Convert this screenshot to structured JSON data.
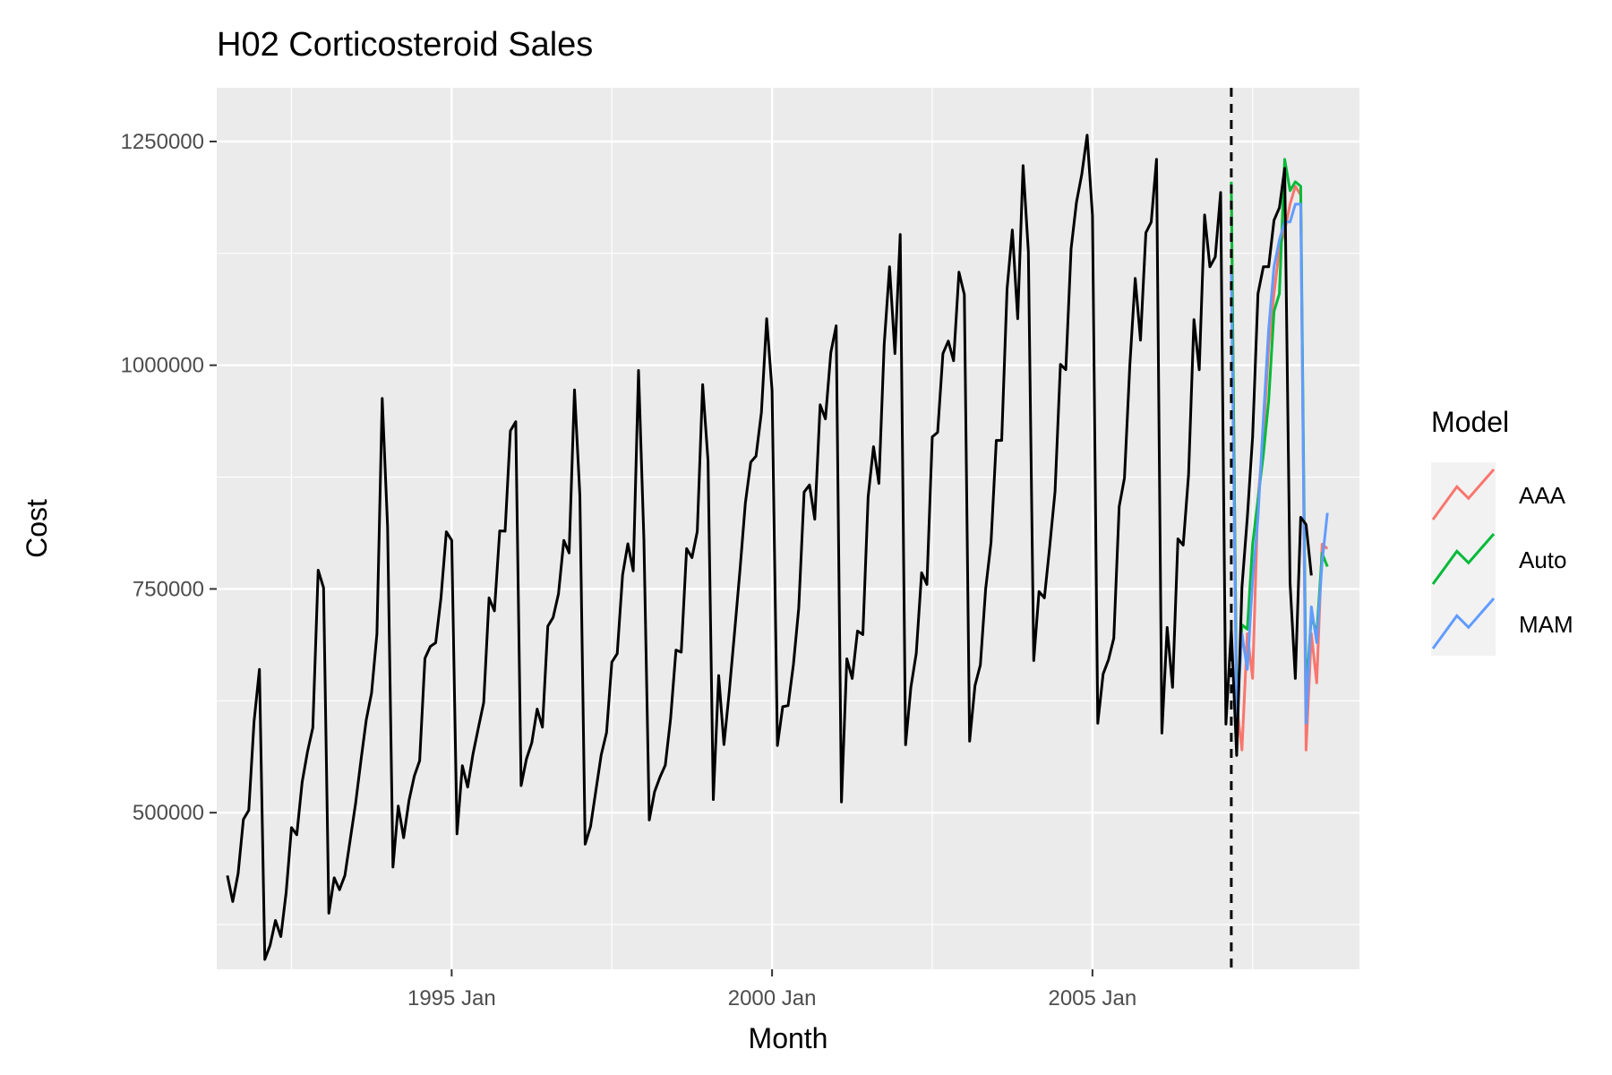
{
  "chart_data": {
    "type": "line",
    "title": "H02 Corticosteroid Sales",
    "xlabel": "Month",
    "ylabel": "Cost",
    "xlim": [
      "1991-05",
      "2009-03"
    ],
    "ylim": [
      325000,
      1310000
    ],
    "x_ticks": [
      {
        "value": "1995-01",
        "label": "1995 Jan"
      },
      {
        "value": "2000-01",
        "label": "2000 Jan"
      },
      {
        "value": "2005-01",
        "label": "2005 Jan"
      }
    ],
    "y_ticks": [
      {
        "value": 500000,
        "label": "500000"
      },
      {
        "value": 750000,
        "label": "750000"
      },
      {
        "value": 1000000,
        "label": "1000000"
      },
      {
        "value": 1250000,
        "label": "1250000"
      }
    ],
    "grid": true,
    "forecast_start": "2007-03",
    "observed": {
      "start": "1991-07",
      "values": [
        429800,
        400700,
        432100,
        492600,
        502700,
        602100,
        660100,
        336000,
        351800,
        379600,
        361500,
        410700,
        483300,
        475400,
        534200,
        568300,
        595000,
        771000,
        751300,
        387700,
        427200,
        413900,
        429800,
        470000,
        509800,
        558000,
        603900,
        633700,
        700000,
        962800,
        819200,
        439200,
        507400,
        472000,
        513600,
        540800,
        558100,
        672500,
        685800,
        689900,
        740000,
        813900,
        804300,
        476400,
        552400,
        528600,
        565800,
        595000,
        623000,
        740000,
        725500,
        814900,
        814600,
        926700,
        936900,
        530200,
        559800,
        578100,
        615800,
        595600,
        708400,
        718100,
        744400,
        804300,
        790300,
        972500,
        854400,
        464800,
        484500,
        524200,
        564400,
        589600,
        668200,
        677700,
        765700,
        800500,
        770200,
        994200,
        805200,
        491800,
        523300,
        539600,
        553100,
        605100,
        681700,
        679400,
        795100,
        785000,
        814300,
        978300,
        893300,
        514700,
        653200,
        576200,
        636200,
        703400,
        771400,
        846100,
        891700,
        898500,
        947200,
        1051900,
        971900,
        575100,
        618400,
        619600,
        666000,
        728700,
        858200,
        866200,
        827900,
        955700,
        940000,
        1014000,
        1044000,
        512000,
        672000,
        650000,
        703000,
        699000,
        853000,
        909000,
        868000,
        1023000,
        1110000,
        1013000,
        1146000,
        576000,
        640000,
        678000,
        768000,
        755000,
        920000,
        925000,
        1013000,
        1027000,
        1005000,
        1104000,
        1079000,
        580000,
        642000,
        665000,
        750000,
        802000,
        916000,
        916000,
        1085000,
        1151000,
        1052000,
        1223000,
        1127000,
        670000,
        747000,
        740000,
        798000,
        859000,
        1001000,
        995000,
        1130000,
        1182000,
        1213000,
        1257000,
        1167000,
        600000,
        655000,
        671000,
        695000,
        842000,
        874000,
        1000000,
        1097000,
        1028000,
        1148000,
        1160000,
        1230000,
        589000,
        707000,
        640000,
        806000,
        799000,
        878000,
        1051000,
        995000,
        1168000,
        1110000,
        1121000,
        1193000,
        599000,
        705000,
        564000,
        752000,
        830000,
        920000,
        1080000,
        1110000,
        1110000,
        1162000,
        1176000,
        1220000,
        757000,
        650000,
        830000,
        822000,
        765000
      ]
    },
    "series": [
      {
        "name": "AAA",
        "color": "#F8766D",
        "start": "2007-03",
        "values": [
          1195000,
          620000,
          570000,
          700000,
          650000,
          850000,
          920000,
          1020000,
          1080000,
          1130000,
          1150000,
          1180000,
          1200000,
          1190000,
          570000,
          700000,
          645000,
          800000,
          795000
        ]
      },
      {
        "name": "Auto",
        "color": "#00BA38",
        "start": "2007-03",
        "values": [
          1205000,
          610000,
          710000,
          705000,
          800000,
          850000,
          900000,
          960000,
          1060000,
          1080000,
          1230000,
          1195000,
          1205000,
          1200000,
          630000,
          720000,
          700000,
          790000,
          775000
        ]
      },
      {
        "name": "MAM",
        "color": "#619CFF",
        "start": "2007-03",
        "values": [
          1110000,
          600000,
          700000,
          660000,
          760000,
          830000,
          940000,
          1040000,
          1110000,
          1140000,
          1160000,
          1160000,
          1180000,
          1180000,
          600000,
          730000,
          690000,
          780000,
          835000
        ]
      }
    ],
    "legend": {
      "title": "Model",
      "position": "right"
    }
  }
}
